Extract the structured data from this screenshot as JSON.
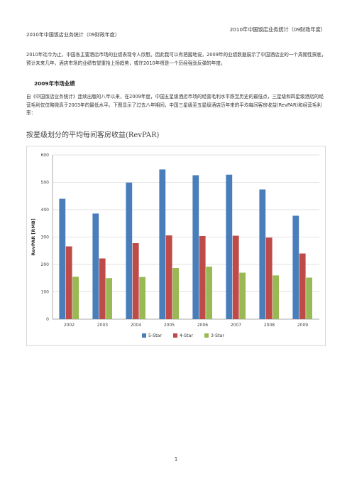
{
  "header": {
    "running_title": "2010年中国饭店业务统计（09财政年度）",
    "doc_title": "2010年中国饭店业务统计（09财政年度）"
  },
  "intro": {
    "text": "2010年迄今为止，中国各主要酒店市场的业绩表现令人欣慰。因此我可以有把握地说，2009年的业绩数据展示了中国酒店业的一个周期性探底，预计未来几年，酒店市场的业绩有望重拾上扬趋势，或许2010年将是一个历经强劲反弹的年度。"
  },
  "section": {
    "heading": "2009年市场业绩",
    "paragraph": "自《中国饭店业务统计》连续出版的八年以来，在2009年度，中国五星级酒店市场的经营毛利水平跌至历史的最低点，三星级和四星级酒店的经营毛利仅仅略微高于2003年的最低水平。下图显示了过去八年期间，中国三星级至五星级酒店历年来的平均每间客房收益(RevPAR)和经营毛利率："
  },
  "page_number": "1",
  "chart_data": {
    "type": "bar",
    "title": "按星级划分的平均每间客房收益(RevPAR)",
    "ylabel": "RevPAR [RMB]",
    "xlabel": "",
    "ylim": [
      0,
      600
    ],
    "yticks": [
      0,
      100,
      200,
      300,
      400,
      500,
      600
    ],
    "grid": true,
    "legend_position": "bottom",
    "categories": [
      "2002",
      "2003",
      "2004",
      "2005",
      "2006",
      "2007",
      "2008",
      "2009"
    ],
    "series": [
      {
        "name": "5-Star",
        "color": "#4a7ebb",
        "values": [
          440,
          386,
          499,
          547,
          526,
          528,
          474,
          378
        ]
      },
      {
        "name": "4-Star",
        "color": "#be4b48",
        "values": [
          266,
          222,
          278,
          306,
          304,
          305,
          298,
          240
        ]
      },
      {
        "name": "3-Star",
        "color": "#98b954",
        "values": [
          155,
          150,
          154,
          187,
          192,
          170,
          160,
          152
        ]
      }
    ]
  }
}
